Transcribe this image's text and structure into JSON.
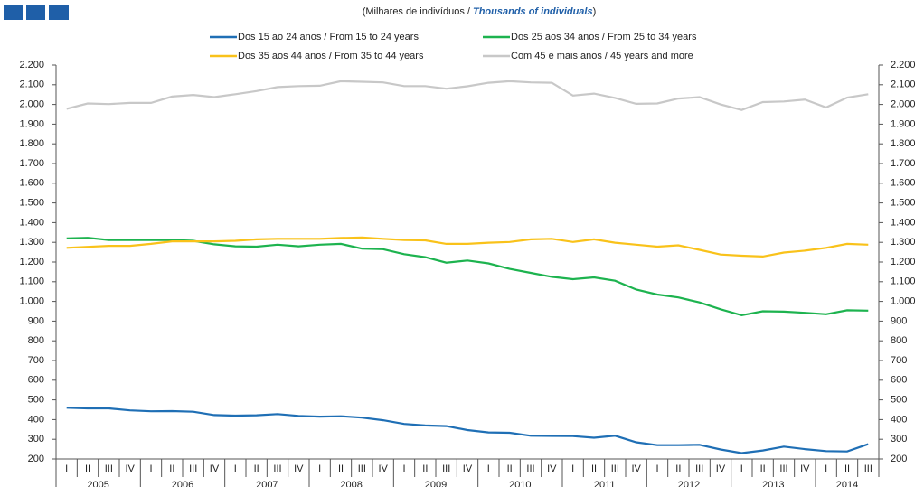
{
  "chart_data": {
    "type": "line",
    "subtitle": [
      "(Milhares de indivíduos / ",
      "Thousands of individuals",
      ")"
    ],
    "categories": [
      "I",
      "II",
      "III",
      "IV",
      "I",
      "II",
      "III",
      "IV",
      "I",
      "II",
      "III",
      "IV",
      "I",
      "II",
      "III",
      "IV",
      "I",
      "II",
      "III",
      "IV",
      "I",
      "II",
      "III",
      "IV",
      "I",
      "II",
      "III",
      "IV",
      "I",
      "II",
      "III",
      "IV",
      "I",
      "II",
      "III",
      "IV",
      "I",
      "II",
      "III"
    ],
    "years": [
      "2005",
      "2006",
      "2007",
      "2008",
      "2009",
      "2010",
      "2011",
      "2012",
      "2013",
      "2014"
    ],
    "series": [
      {
        "name": "Dos 15 ao 24 anos / From 15 to 24 years",
        "color": "#1f6fb5",
        "values": [
          460,
          457,
          457,
          447,
          442,
          443,
          440,
          423,
          420,
          422,
          428,
          419,
          415,
          417,
          410,
          397,
          378,
          370,
          367,
          347,
          335,
          333,
          318,
          317,
          316,
          308,
          318,
          285,
          270,
          270,
          272,
          248,
          230,
          243,
          263,
          250,
          240,
          238,
          275
        ]
      },
      {
        "name": "Dos 25 aos 34 anos / From 25 to 34 years",
        "color": "#1db34f",
        "values": [
          1320,
          1323,
          1312,
          1312,
          1312,
          1312,
          1308,
          1290,
          1280,
          1278,
          1288,
          1280,
          1288,
          1292,
          1268,
          1265,
          1240,
          1225,
          1197,
          1208,
          1193,
          1165,
          1145,
          1125,
          1113,
          1122,
          1105,
          1060,
          1035,
          1020,
          995,
          960,
          930,
          950,
          948,
          942,
          935,
          955,
          953
        ]
      },
      {
        "name": "Dos 35 aos 44 anos / From 35 to 44 years",
        "color": "#f9c21a",
        "values": [
          1272,
          1277,
          1282,
          1282,
          1292,
          1305,
          1305,
          1305,
          1308,
          1315,
          1318,
          1318,
          1318,
          1322,
          1325,
          1318,
          1312,
          1310,
          1292,
          1292,
          1298,
          1302,
          1315,
          1318,
          1302,
          1315,
          1298,
          1288,
          1278,
          1285,
          1262,
          1238,
          1232,
          1228,
          1248,
          1258,
          1272,
          1292,
          1288
        ]
      },
      {
        "name": "Com 45 e mais anos / 45 years and more",
        "color": "#c8c8c8",
        "values": [
          1978,
          2005,
          2002,
          2008,
          2008,
          2040,
          2048,
          2037,
          2052,
          2068,
          2088,
          2093,
          2095,
          2118,
          2115,
          2112,
          2093,
          2093,
          2080,
          2092,
          2110,
          2118,
          2112,
          2110,
          2045,
          2055,
          2033,
          2003,
          2005,
          2030,
          2037,
          2000,
          1972,
          2012,
          2015,
          2025,
          1985,
          2035,
          2052
        ]
      }
    ],
    "ylim": [
      200,
      2200
    ],
    "yticks": [
      200,
      300,
      400,
      500,
      600,
      700,
      800,
      900,
      {
        "value": 1000,
        "label": "1.000"
      },
      {
        "value": 1100,
        "label": "1.100"
      },
      {
        "value": 1200,
        "label": "1.200"
      },
      {
        "value": 1300,
        "label": "1.300"
      },
      {
        "value": 1400,
        "label": "1.400"
      },
      {
        "value": 1500,
        "label": "1.500"
      },
      {
        "value": 1600,
        "label": "1.600"
      },
      {
        "value": 1700,
        "label": "1.700"
      },
      {
        "value": 1800,
        "label": "1.800"
      },
      {
        "value": 1900,
        "label": "1.900"
      },
      {
        "value": 2000,
        "label": "2.000"
      },
      {
        "value": 2100,
        "label": "2.100"
      },
      {
        "value": 2200,
        "label": "2.200"
      }
    ],
    "grid": false
  }
}
